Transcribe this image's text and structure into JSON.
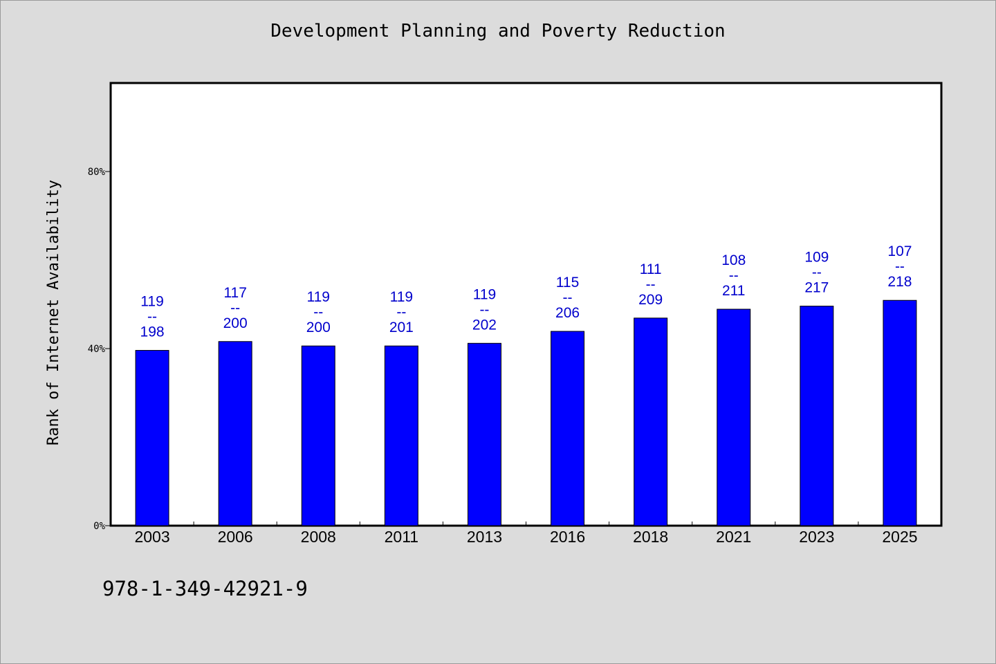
{
  "colors": {
    "background": "#dcdcdc",
    "plot_area": "#ffffff",
    "bar": "#0000ff",
    "label": "#0000cc"
  },
  "chart_data": {
    "type": "bar",
    "title": "Development Planning and Poverty Reduction",
    "ylabel": "Rank of Internet Availability",
    "xlabel": "",
    "ylim": [
      0,
      100
    ],
    "y_ticks": [
      0,
      40,
      80
    ],
    "y_tick_labels": [
      "0%",
      "40%",
      "80%"
    ],
    "categories": [
      "2003",
      "2006",
      "2008",
      "2011",
      "2013",
      "2016",
      "2018",
      "2021",
      "2023",
      "2025"
    ],
    "values": [
      39.6,
      41.6,
      40.6,
      40.6,
      41.2,
      43.9,
      46.9,
      48.9,
      49.6,
      50.9
    ],
    "data_labels": [
      {
        "rank": "119",
        "sep": "--",
        "total": "198"
      },
      {
        "rank": "117",
        "sep": "--",
        "total": "200"
      },
      {
        "rank": "119",
        "sep": "--",
        "total": "200"
      },
      {
        "rank": "119",
        "sep": "--",
        "total": "201"
      },
      {
        "rank": "119",
        "sep": "--",
        "total": "202"
      },
      {
        "rank": "115",
        "sep": "--",
        "total": "206"
      },
      {
        "rank": "111",
        "sep": "--",
        "total": "209"
      },
      {
        "rank": "108",
        "sep": "--",
        "total": "211"
      },
      {
        "rank": "109",
        "sep": "--",
        "total": "217"
      },
      {
        "rank": "107",
        "sep": "--",
        "total": "218"
      }
    ],
    "grid": false,
    "legend": "none"
  },
  "footer_text": "978-1-349-42921-9"
}
